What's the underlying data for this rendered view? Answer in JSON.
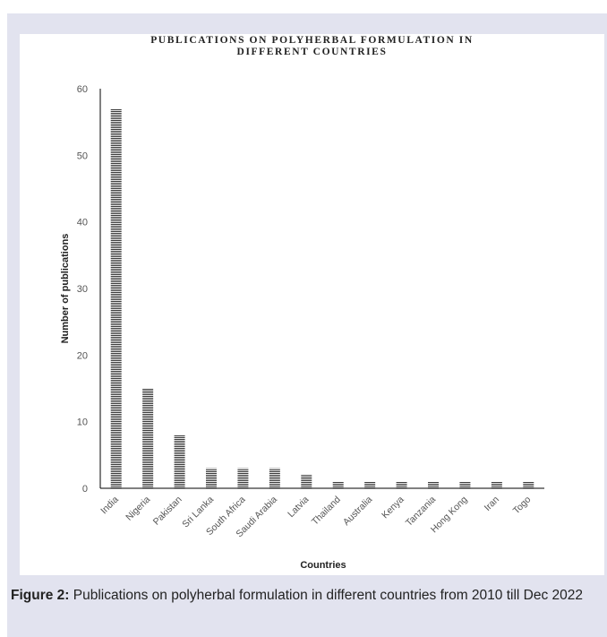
{
  "caption": {
    "label": "Figure 2:",
    "text": "Publications on polyherbal formulation in different countries from 2010 till Dec 2022"
  },
  "chart_data": {
    "type": "bar",
    "title_line1": "PUBLICATIONS ON POLYHERBAL FORMULATION IN",
    "title_line2": "DIFFERENT COUNTRIES",
    "xlabel": "Countries",
    "ylabel": "Number of publications",
    "ylim": [
      0,
      60
    ],
    "yticks": [
      0,
      10,
      20,
      30,
      40,
      50,
      60
    ],
    "grid": false,
    "legend": "none",
    "bar_style": "horizontal-hatch",
    "bar_color": "#3a3a3a",
    "categories": [
      "India",
      "Nigeria",
      "Pakistan",
      "Sri Lanka",
      "South Africa",
      "Saudi Arabia",
      "Latvia",
      "Thailand",
      "Australia",
      "Kenya",
      "Tanzania",
      "Hong Kong",
      "Iran",
      "Togo"
    ],
    "values": [
      57,
      15,
      8,
      3,
      3,
      3,
      2,
      1,
      1,
      1,
      1,
      1,
      1,
      1
    ]
  }
}
